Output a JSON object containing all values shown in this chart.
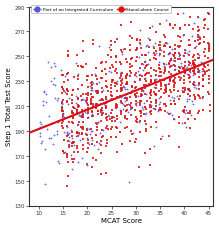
{
  "title": "",
  "xlabel": "MCAT Score",
  "ylabel": "Step 1 Total Test Score",
  "xlim": [
    8,
    46
  ],
  "ylim": [
    130,
    290
  ],
  "xticks": [
    10,
    15,
    20,
    25,
    30,
    35,
    40,
    45
  ],
  "yticks": [
    130,
    150,
    170,
    190,
    210,
    230,
    250,
    270,
    290
  ],
  "blue_line_slope": 1.55,
  "blue_line_intercept": 176,
  "red_line_slope": 1.55,
  "red_line_intercept": 176,
  "seed": 42,
  "n_blue": 280,
  "n_red": 800,
  "blue_color": "#5555DD",
  "red_color": "#DD1111",
  "background_color": "#FFFFFF",
  "legend_blue_label": "Part of an Integrated Curriculum",
  "legend_red_label": "Stand-alone Course"
}
